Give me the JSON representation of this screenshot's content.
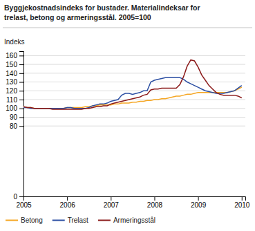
{
  "chart_data": {
    "type": "line",
    "title": "Byggjekostnadsindeks for bustader. Materialindeksar for\ntrelast, betong og armeringsstål. 2005=100",
    "ylabel": "Indeks",
    "x": [
      2005.0,
      2005.083,
      2005.167,
      2005.25,
      2005.333,
      2005.417,
      2005.5,
      2005.583,
      2005.667,
      2005.75,
      2005.833,
      2005.917,
      2006.0,
      2006.083,
      2006.167,
      2006.25,
      2006.333,
      2006.417,
      2006.5,
      2006.583,
      2006.667,
      2006.75,
      2006.833,
      2006.917,
      2007.0,
      2007.083,
      2007.167,
      2007.25,
      2007.333,
      2007.417,
      2007.5,
      2007.583,
      2007.667,
      2007.75,
      2007.833,
      2007.917,
      2008.0,
      2008.083,
      2008.167,
      2008.25,
      2008.333,
      2008.417,
      2008.5,
      2008.583,
      2008.667,
      2008.75,
      2008.833,
      2008.917,
      2009.0,
      2009.083,
      2009.167,
      2009.25,
      2009.333,
      2009.417,
      2009.5,
      2009.583,
      2009.667,
      2009.75,
      2009.833,
      2009.917,
      2010.0
    ],
    "series": [
      {
        "name": "Betong",
        "color": "#f5a623",
        "values": [
          102,
          101,
          101,
          100,
          100,
          100,
          100,
          100,
          100,
          100,
          100,
          100,
          101,
          101,
          101,
          101,
          101,
          102,
          102,
          103,
          103,
          104,
          104,
          104,
          104,
          105,
          105,
          106,
          106,
          106,
          107,
          107,
          108,
          108,
          109,
          109,
          110,
          110,
          111,
          111,
          112,
          113,
          114,
          114,
          115,
          116,
          116,
          117,
          118,
          118,
          118,
          118,
          118,
          118,
          118,
          118,
          118,
          119,
          120,
          122,
          124
        ]
      },
      {
        "name": "Trelast",
        "color": "#2c4fa3",
        "values": [
          101,
          101,
          100,
          100,
          100,
          100,
          100,
          100,
          100,
          100,
          100,
          100,
          101,
          101,
          100,
          100,
          100,
          100,
          101,
          103,
          104,
          105,
          105,
          106,
          108,
          109,
          110,
          115,
          117,
          117,
          116,
          117,
          118,
          120,
          120,
          130,
          132,
          133,
          134,
          135,
          135,
          135,
          135,
          135,
          133,
          130,
          128,
          126,
          124,
          122,
          120,
          119,
          118,
          117,
          117,
          117,
          118,
          119,
          120,
          123,
          126
        ]
      },
      {
        "name": "Armeringsstål",
        "color": "#8b1a1a",
        "values": [
          102,
          101,
          101,
          100,
          100,
          100,
          100,
          100,
          99,
          99,
          99,
          99,
          99,
          99,
          99,
          99,
          99,
          100,
          100,
          101,
          102,
          102,
          103,
          103,
          105,
          106,
          107,
          108,
          109,
          110,
          111,
          112,
          113,
          115,
          116,
          121,
          122,
          122,
          123,
          123,
          123,
          123,
          123,
          127,
          136,
          148,
          155,
          154,
          147,
          138,
          132,
          126,
          122,
          118,
          116,
          115,
          115,
          115,
          115,
          114,
          112
        ]
      }
    ],
    "xlim": [
      2005.0,
      2010.083
    ],
    "xticks": [
      2005,
      2006,
      2007,
      2008,
      2009,
      2010
    ],
    "ylim": [
      0,
      165
    ],
    "yticks": [
      0,
      80,
      90,
      100,
      110,
      120,
      130,
      140,
      150,
      160
    ],
    "grid": true,
    "legend": "bottom"
  }
}
